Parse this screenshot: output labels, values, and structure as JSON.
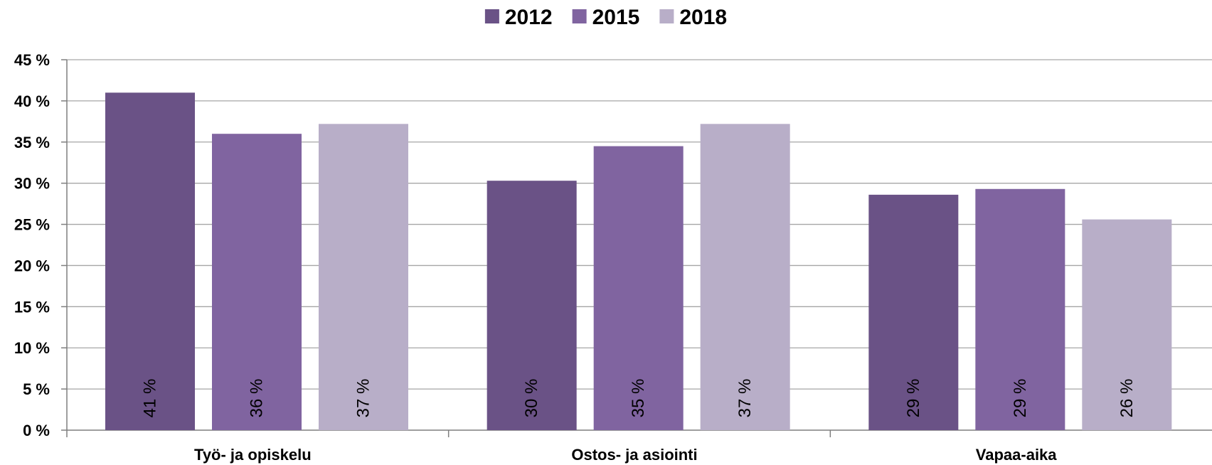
{
  "chart_data": {
    "type": "bar",
    "categories": [
      "Työ- ja opiskelu",
      "Ostos- ja asiointi",
      "Vapaa-aika"
    ],
    "series": [
      {
        "name": "2012",
        "values": [
          41,
          30.3,
          28.6
        ],
        "labels": [
          "41 %",
          "30 %",
          "29 %"
        ],
        "color": "#6A5286"
      },
      {
        "name": "2015",
        "values": [
          36,
          34.5,
          29.3
        ],
        "labels": [
          "36 %",
          "35 %",
          "29 %"
        ],
        "color": "#8064A0"
      },
      {
        "name": "2018",
        "values": [
          37.2,
          37.2,
          25.6
        ],
        "labels": [
          "37 %",
          "37 %",
          "26 %"
        ],
        "color": "#B8AEC8"
      }
    ],
    "ylim": [
      0,
      45
    ],
    "yticks": [
      0,
      5,
      10,
      15,
      20,
      25,
      30,
      35,
      40,
      45
    ],
    "ytick_labels": [
      "0 %",
      "5 %",
      "10 %",
      "15 %",
      "20 %",
      "25 %",
      "30 %",
      "35 %",
      "40 %",
      "45 %"
    ],
    "grid": true,
    "legend_position": "top-center",
    "gridline_color": "#A6A6A6"
  }
}
